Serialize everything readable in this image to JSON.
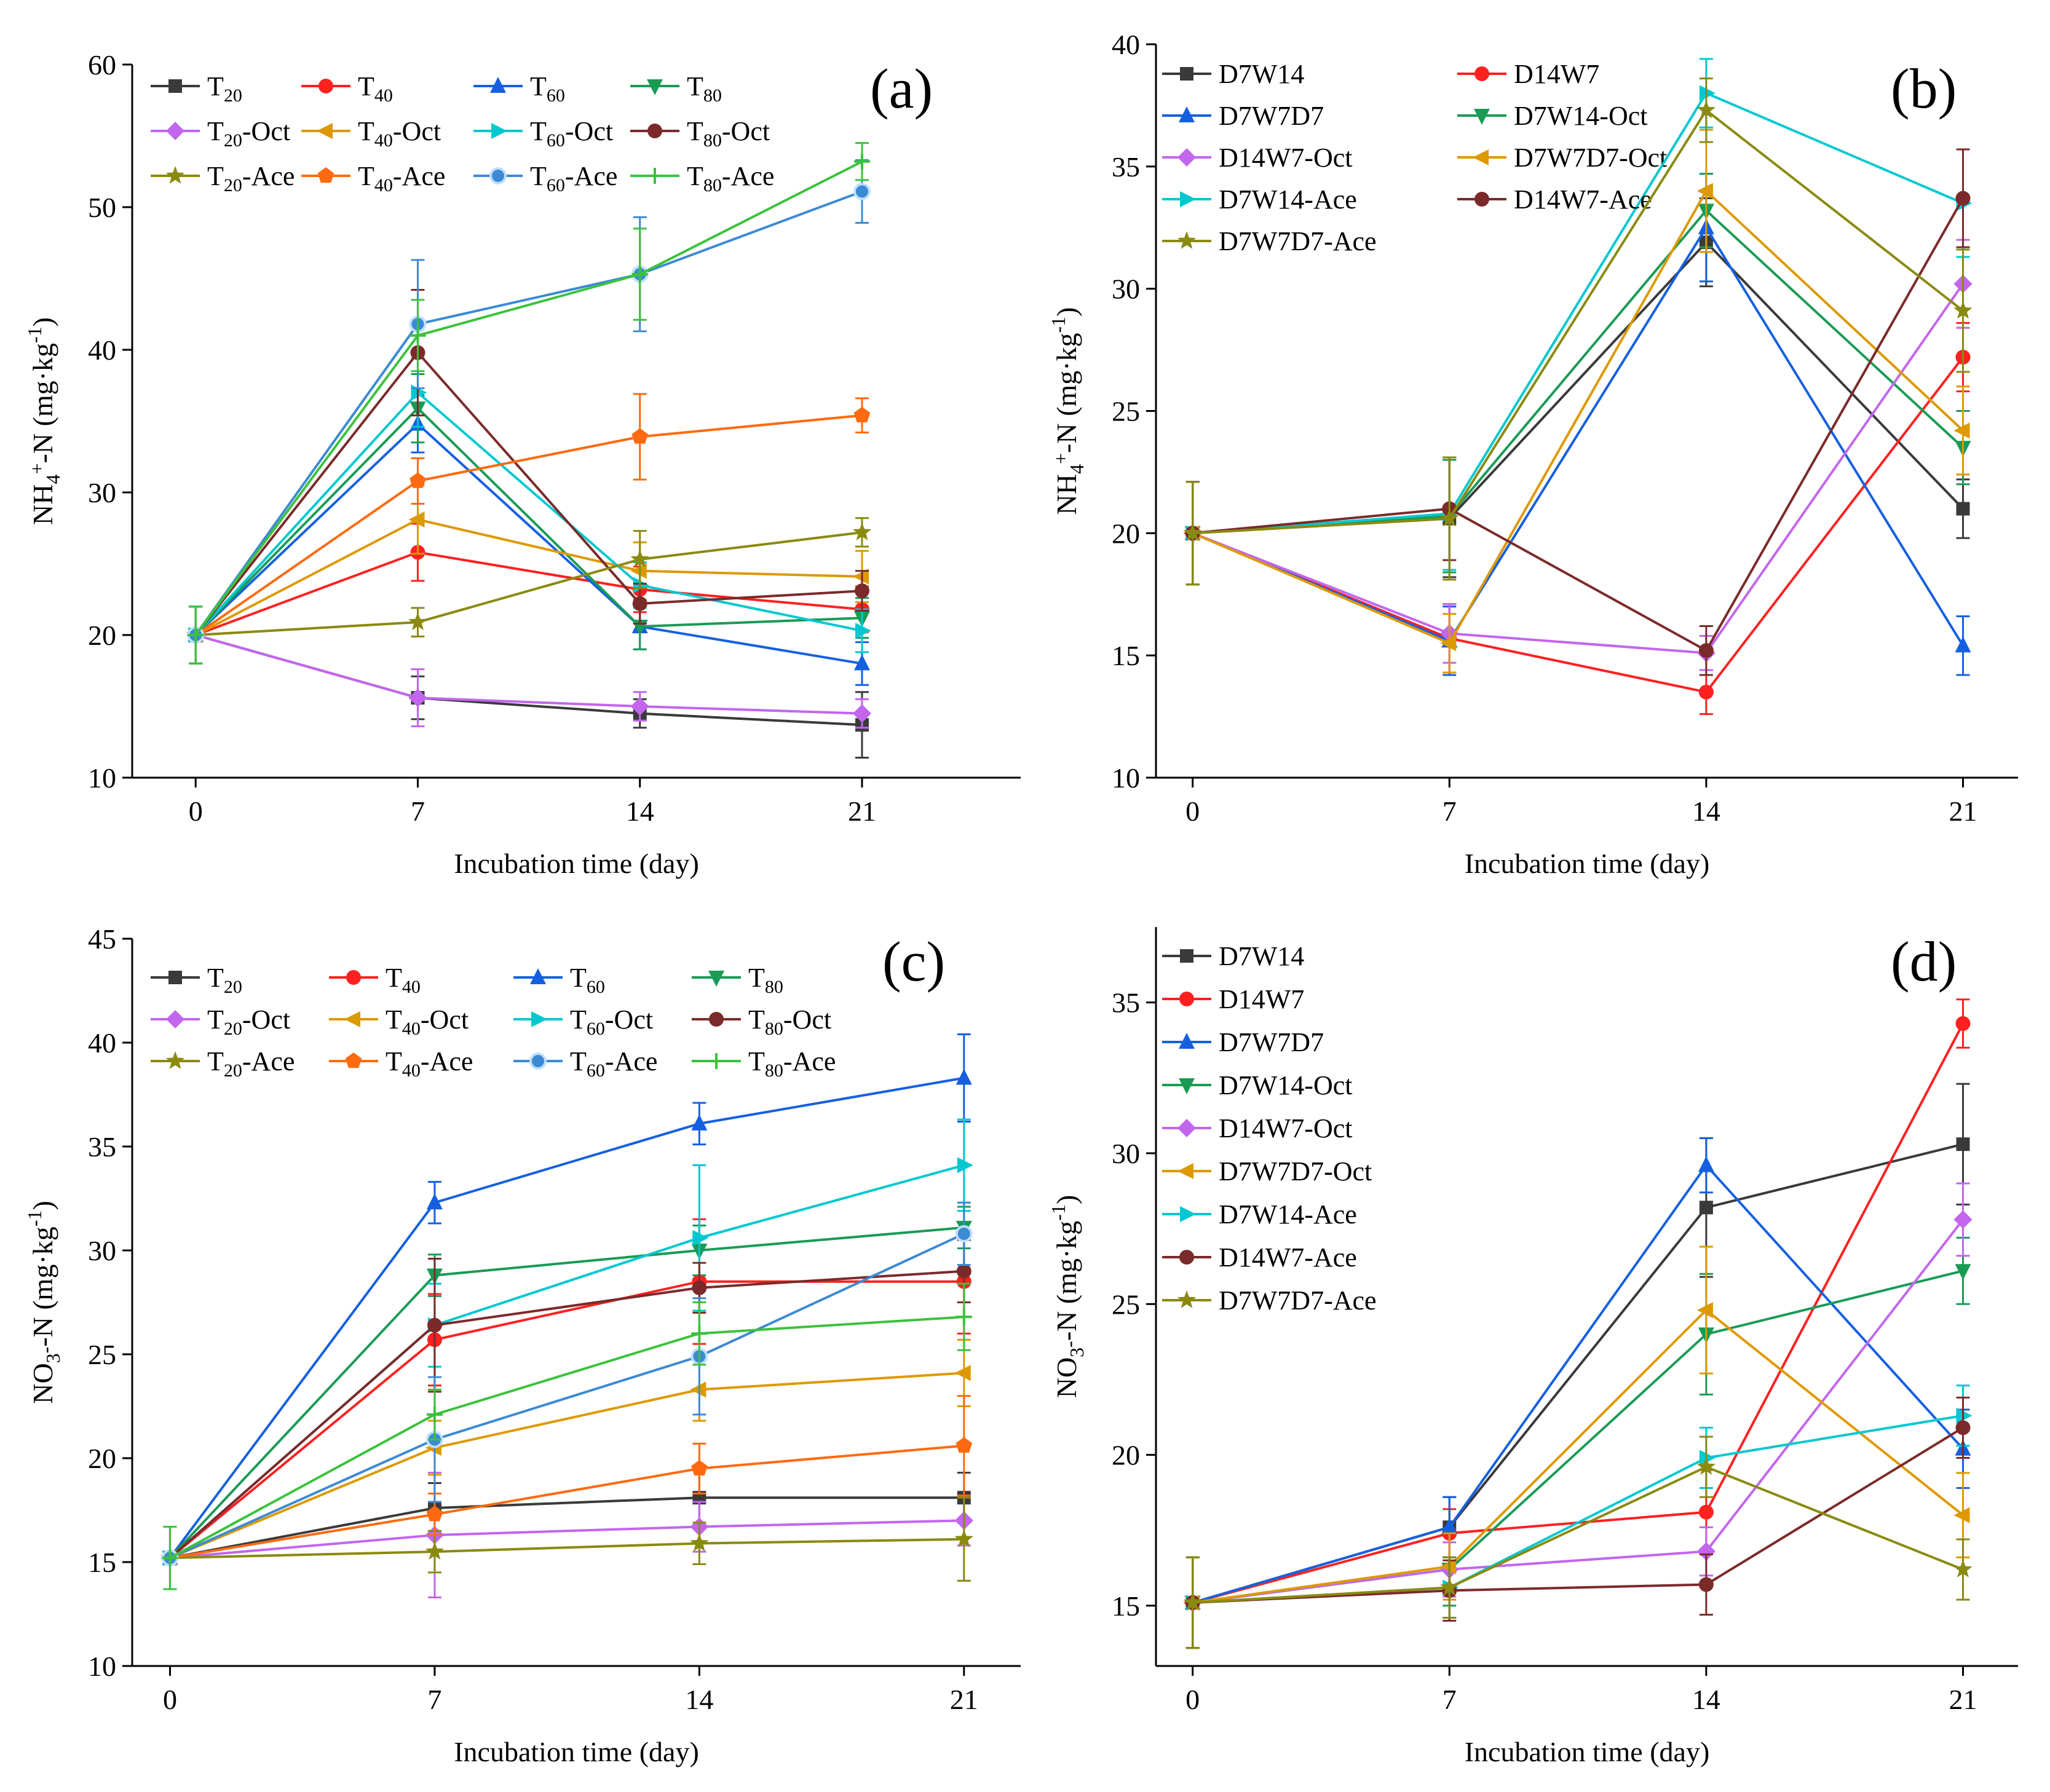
{
  "chart_data": [
    {
      "panel": "(a)",
      "type": "line",
      "xlabel": "Incubation time (day)",
      "ylabel": "NH4+-N (mg·kg-1)",
      "xlim": [
        -2,
        26
      ],
      "ylim": [
        10,
        60
      ],
      "x": [
        0,
        7,
        14,
        21
      ],
      "xticks": [
        0,
        7,
        14,
        21
      ],
      "yticks": [
        10,
        20,
        30,
        40,
        50,
        60
      ],
      "legend_columns": 4,
      "series": [
        {
          "name": "T20",
          "main": "T",
          "sub": "20",
          "suffix": "",
          "color": "#3a3a3a",
          "marker": "square",
          "values": [
            20.0,
            15.6,
            14.5,
            13.7
          ],
          "err": [
            2.0,
            1.5,
            1.0,
            2.3
          ]
        },
        {
          "name": "T40",
          "main": "T",
          "sub": "40",
          "suffix": "",
          "color": "#ff2020",
          "marker": "circle",
          "values": [
            20.0,
            25.8,
            23.2,
            21.8
          ],
          "err": [
            2.0,
            2.0,
            1.6,
            1.6
          ]
        },
        {
          "name": "T60",
          "main": "T",
          "sub": "60",
          "suffix": "",
          "color": "#1560e0",
          "marker": "triangle-up",
          "values": [
            20.0,
            34.8,
            20.6,
            18.0
          ],
          "err": [
            2.0,
            2.0,
            1.6,
            1.5
          ]
        },
        {
          "name": "T80",
          "main": "T",
          "sub": "80",
          "suffix": "",
          "color": "#1a9b55",
          "marker": "triangle-down",
          "values": [
            20.0,
            35.9,
            20.6,
            21.2
          ],
          "err": [
            2.0,
            2.4,
            1.6,
            1.4
          ]
        },
        {
          "name": "T20-Oct",
          "main": "T",
          "sub": "20",
          "suffix": "-Oct",
          "color": "#c266ee",
          "marker": "diamond",
          "values": [
            20.0,
            15.6,
            15.0,
            14.5
          ],
          "err": [
            2.0,
            2.0,
            1.0,
            1.0
          ]
        },
        {
          "name": "T40-Oct",
          "main": "T",
          "sub": "40",
          "suffix": "-Oct",
          "color": "#dd9900",
          "marker": "triangle-left",
          "values": [
            20.0,
            28.1,
            24.5,
            24.1
          ],
          "err": [
            2.0,
            2.4,
            2.0,
            1.8
          ]
        },
        {
          "name": "T60-Oct",
          "main": "T",
          "sub": "60",
          "suffix": "-Oct",
          "color": "#00c8d0",
          "marker": "triangle-right",
          "values": [
            20.0,
            37.0,
            23.5,
            20.3
          ],
          "err": [
            2.0,
            2.4,
            1.6,
            1.5
          ]
        },
        {
          "name": "T80-Oct",
          "main": "T",
          "sub": "80",
          "suffix": "-Oct",
          "color": "#7b2a2a",
          "marker": "circle",
          "values": [
            20.0,
            39.8,
            22.2,
            23.1
          ],
          "err": [
            2.0,
            4.4,
            1.4,
            1.4
          ]
        },
        {
          "name": "T20-Ace",
          "main": "T",
          "sub": "20",
          "suffix": "-Ace",
          "color": "#8a8a10",
          "marker": "star",
          "values": [
            20.0,
            20.9,
            25.3,
            27.2
          ],
          "err": [
            2.0,
            1.0,
            2.0,
            1.0
          ]
        },
        {
          "name": "T40-Ace",
          "main": "T",
          "sub": "40",
          "suffix": "-Ace",
          "color": "#ff6a10",
          "marker": "pentagon",
          "values": [
            20.0,
            30.8,
            33.9,
            35.4
          ],
          "err": [
            2.0,
            1.6,
            3.0,
            1.2
          ]
        },
        {
          "name": "T60-Ace",
          "main": "T",
          "sub": "60",
          "suffix": "-Ace",
          "color": "#3c8ad4",
          "marker": "ringed-circle",
          "values": [
            20.0,
            41.8,
            45.3,
            51.1
          ],
          "err": [
            2.0,
            4.5,
            4.0,
            2.2
          ]
        },
        {
          "name": "T80-Ace",
          "main": "T",
          "sub": "80",
          "suffix": "-Ace",
          "color": "#3cc23c",
          "marker": "plus",
          "values": [
            20.0,
            41.0,
            45.3,
            53.2
          ],
          "err": [
            2.0,
            2.5,
            3.2,
            1.3
          ]
        }
      ]
    },
    {
      "panel": "(b)",
      "type": "line",
      "xlabel": "Incubation time (day)",
      "ylabel": "NH4+-N (mg·kg-1)",
      "xlim": [
        -1,
        22.5
      ],
      "ylim": [
        10,
        40
      ],
      "x": [
        0,
        7,
        14,
        21
      ],
      "xticks": [
        0,
        7,
        14,
        21
      ],
      "yticks": [
        10,
        15,
        20,
        25,
        30,
        35,
        40
      ],
      "legend_columns": 2,
      "series": [
        {
          "name": "D7W14",
          "main": "D7W14",
          "sub": "",
          "suffix": "",
          "color": "#3a3a3a",
          "marker": "square",
          "values": [
            20.0,
            20.6,
            31.9,
            21.0
          ],
          "err": [
            2.1,
            2.4,
            1.8,
            1.2
          ]
        },
        {
          "name": "D14W7",
          "main": "D14W7",
          "sub": "",
          "suffix": "",
          "color": "#ff2020",
          "marker": "circle",
          "values": [
            20.0,
            15.7,
            13.5,
            27.2
          ],
          "err": [
            2.1,
            1.4,
            0.9,
            1.4
          ]
        },
        {
          "name": "D7W7D7",
          "main": "D7W7D7",
          "sub": "",
          "suffix": "",
          "color": "#1560e0",
          "marker": "triangle-up",
          "values": [
            20.0,
            15.6,
            32.5,
            15.4
          ],
          "err": [
            2.1,
            1.4,
            2.2,
            1.2
          ]
        },
        {
          "name": "D7W14-Oct",
          "main": "D7W14-Oct",
          "sub": "",
          "suffix": "",
          "color": "#1a9b55",
          "marker": "triangle-down",
          "values": [
            20.0,
            20.7,
            33.2,
            23.5
          ],
          "err": [
            2.1,
            2.3,
            1.5,
            1.5
          ]
        },
        {
          "name": "D14W7-Oct",
          "main": "D14W7-Oct",
          "sub": "",
          "suffix": "",
          "color": "#c266ee",
          "marker": "diamond",
          "values": [
            20.0,
            15.9,
            15.1,
            30.2
          ],
          "err": [
            2.1,
            1.2,
            0.7,
            1.8
          ]
        },
        {
          "name": "D7W7D7-Oct",
          "main": "D7W7D7-Oct",
          "sub": "",
          "suffix": "",
          "color": "#dd9900",
          "marker": "triangle-left",
          "values": [
            20.0,
            15.5,
            34.0,
            24.2
          ],
          "err": [
            2.1,
            1.2,
            2.5,
            1.8
          ]
        },
        {
          "name": "D7W14-Ace",
          "main": "D7W14-Ace",
          "sub": "",
          "suffix": "",
          "color": "#00c8d0",
          "marker": "triangle-right",
          "values": [
            20.0,
            20.8,
            38.0,
            33.5
          ],
          "err": [
            2.1,
            2.3,
            1.4,
            2.2
          ]
        },
        {
          "name": "D14W7-Ace",
          "main": "D14W7-Ace",
          "sub": "",
          "suffix": "",
          "color": "#7b2a2a",
          "marker": "circle",
          "values": [
            20.0,
            21.0,
            15.2,
            33.7
          ],
          "err": [
            2.1,
            2.1,
            1.0,
            2.0
          ]
        },
        {
          "name": "D7W7D7-Ace",
          "main": "D7W7D7-Ace",
          "sub": "",
          "suffix": "",
          "color": "#8a8a10",
          "marker": "star",
          "values": [
            20.0,
            20.6,
            37.3,
            29.1
          ],
          "err": [
            2.1,
            2.5,
            1.3,
            2.5
          ]
        }
      ]
    },
    {
      "panel": "(c)",
      "type": "line",
      "xlabel": "Incubation time (day)",
      "ylabel": "NO3--N (mg·kg-1)",
      "xlim": [
        -1,
        22.5
      ],
      "ylim": [
        10,
        45
      ],
      "x": [
        0,
        7,
        14,
        21
      ],
      "xticks": [
        0,
        7,
        14,
        21
      ],
      "yticks": [
        10,
        15,
        20,
        25,
        30,
        35,
        40,
        45
      ],
      "legend_columns": 4,
      "series": [
        {
          "name": "T20",
          "main": "T",
          "sub": "20",
          "suffix": "",
          "color": "#3a3a3a",
          "marker": "square",
          "values": [
            15.2,
            17.6,
            18.1,
            18.1
          ],
          "err": [
            1.5,
            1.2,
            1.4,
            1.2
          ]
        },
        {
          "name": "T40",
          "main": "T",
          "sub": "40",
          "suffix": "",
          "color": "#ff2020",
          "marker": "circle",
          "values": [
            15.2,
            25.7,
            28.5,
            28.5
          ],
          "err": [
            1.5,
            2.2,
            3.0,
            2.5
          ]
        },
        {
          "name": "T60",
          "main": "T",
          "sub": "60",
          "suffix": "",
          "color": "#1560e0",
          "marker": "triangle-up",
          "values": [
            15.2,
            32.3,
            36.1,
            38.3
          ],
          "err": [
            1.5,
            1.0,
            1.0,
            2.1
          ]
        },
        {
          "name": "T80",
          "main": "T",
          "sub": "80",
          "suffix": "",
          "color": "#1a9b55",
          "marker": "triangle-down",
          "values": [
            15.2,
            28.8,
            30.0,
            31.1
          ],
          "err": [
            1.5,
            1.0,
            1.2,
            1.0
          ]
        },
        {
          "name": "T20-Oct",
          "main": "T",
          "sub": "20",
          "suffix": "-Oct",
          "color": "#c266ee",
          "marker": "diamond",
          "values": [
            15.2,
            16.3,
            16.7,
            17.0
          ],
          "err": [
            1.5,
            3.0,
            1.2,
            1.2
          ]
        },
        {
          "name": "T40-Oct",
          "main": "T",
          "sub": "40",
          "suffix": "-Oct",
          "color": "#dd9900",
          "marker": "triangle-left",
          "values": [
            15.2,
            20.5,
            23.3,
            24.1
          ],
          "err": [
            1.5,
            1.3,
            1.5,
            1.6
          ]
        },
        {
          "name": "T60-Oct",
          "main": "T",
          "sub": "60",
          "suffix": "-Oct",
          "color": "#00c8d0",
          "marker": "triangle-right",
          "values": [
            15.2,
            26.4,
            30.6,
            34.1
          ],
          "err": [
            1.5,
            2.0,
            3.5,
            2.2
          ]
        },
        {
          "name": "T80-Oct",
          "main": "T",
          "sub": "80",
          "suffix": "-Oct",
          "color": "#7b2a2a",
          "marker": "circle",
          "values": [
            15.2,
            26.4,
            28.2,
            29.0
          ],
          "err": [
            1.5,
            3.2,
            1.2,
            1.5
          ]
        },
        {
          "name": "T20-Ace",
          "main": "T",
          "sub": "20",
          "suffix": "-Ace",
          "color": "#8a8a10",
          "marker": "star",
          "values": [
            15.2,
            15.5,
            15.9,
            16.1
          ],
          "err": [
            1.5,
            1.0,
            1.0,
            2.0
          ]
        },
        {
          "name": "T40-Ace",
          "main": "T",
          "sub": "40",
          "suffix": "-Ace",
          "color": "#ff6a10",
          "marker": "pentagon",
          "values": [
            15.2,
            17.3,
            19.5,
            20.6
          ],
          "err": [
            1.5,
            1.0,
            1.2,
            2.4
          ]
        },
        {
          "name": "T60-Ace",
          "main": "T",
          "sub": "60",
          "suffix": "-Ace",
          "color": "#3c8ad4",
          "marker": "ringed-circle",
          "values": [
            15.2,
            20.9,
            24.9,
            30.8
          ],
          "err": [
            1.5,
            3.0,
            2.8,
            1.5
          ]
        },
        {
          "name": "T80-Ace",
          "main": "T",
          "sub": "80",
          "suffix": "-Ace",
          "color": "#3cc23c",
          "marker": "plus",
          "values": [
            15.2,
            22.1,
            26.0,
            26.8
          ],
          "err": [
            1.5,
            1.2,
            1.5,
            1.6
          ]
        }
      ]
    },
    {
      "panel": "(d)",
      "type": "line",
      "xlabel": "Incubation time (day)",
      "ylabel": "NO3--N (mg·kg-1)",
      "xlim": [
        -1,
        22.5
      ],
      "ylim": [
        13,
        37.5
      ],
      "x": [
        0,
        7,
        14,
        21
      ],
      "xticks": [
        0,
        7,
        14,
        21
      ],
      "yticks": [
        15,
        20,
        25,
        30,
        35
      ],
      "legend_columns": 1,
      "series": [
        {
          "name": "D7W14",
          "main": "D7W14",
          "sub": "",
          "suffix": "",
          "color": "#3a3a3a",
          "marker": "square",
          "values": [
            15.1,
            17.6,
            28.2,
            30.3
          ],
          "err": [
            1.5,
            1.0,
            2.3,
            2.0
          ]
        },
        {
          "name": "D14W7",
          "main": "D14W7",
          "sub": "",
          "suffix": "",
          "color": "#ff2020",
          "marker": "circle",
          "values": [
            15.1,
            17.4,
            18.1,
            34.3
          ],
          "err": [
            1.5,
            0.8,
            1.4,
            0.8
          ]
        },
        {
          "name": "D7W7D7",
          "main": "D7W7D7",
          "sub": "",
          "suffix": "",
          "color": "#1560e0",
          "marker": "triangle-up",
          "values": [
            15.1,
            17.6,
            29.6,
            20.2
          ],
          "err": [
            1.5,
            1.0,
            0.9,
            1.3
          ]
        },
        {
          "name": "D7W14-Oct",
          "main": "D7W14-Oct",
          "sub": "",
          "suffix": "",
          "color": "#1a9b55",
          "marker": "triangle-down",
          "values": [
            15.1,
            16.2,
            24.0,
            26.1
          ],
          "err": [
            1.5,
            1.2,
            2.0,
            1.1
          ]
        },
        {
          "name": "D14W7-Oct",
          "main": "D14W7-Oct",
          "sub": "",
          "suffix": "",
          "color": "#c266ee",
          "marker": "diamond",
          "values": [
            15.1,
            16.2,
            16.8,
            27.8
          ],
          "err": [
            1.5,
            0.9,
            0.8,
            1.2
          ]
        },
        {
          "name": "D7W7D7-Oct",
          "main": "D7W7D7-Oct",
          "sub": "",
          "suffix": "",
          "color": "#dd9900",
          "marker": "triangle-left",
          "values": [
            15.1,
            16.3,
            24.8,
            18.0
          ],
          "err": [
            1.5,
            1.1,
            2.1,
            1.4
          ]
        },
        {
          "name": "D7W14-Ace",
          "main": "D7W14-Ace",
          "sub": "",
          "suffix": "",
          "color": "#00c8d0",
          "marker": "triangle-right",
          "values": [
            15.1,
            15.6,
            19.9,
            21.3
          ],
          "err": [
            1.5,
            1.0,
            1.0,
            1.0
          ]
        },
        {
          "name": "D14W7-Ace",
          "main": "D14W7-Ace",
          "sub": "",
          "suffix": "",
          "color": "#7b2a2a",
          "marker": "circle",
          "values": [
            15.1,
            15.5,
            15.7,
            20.9
          ],
          "err": [
            1.5,
            1.0,
            1.0,
            1.0
          ]
        },
        {
          "name": "D7W7D7-Ace",
          "main": "D7W7D7-Ace",
          "sub": "",
          "suffix": "",
          "color": "#8a8a10",
          "marker": "star",
          "values": [
            15.1,
            15.6,
            19.6,
            16.2
          ],
          "err": [
            1.5,
            1.0,
            1.0,
            1.0
          ]
        }
      ]
    }
  ]
}
